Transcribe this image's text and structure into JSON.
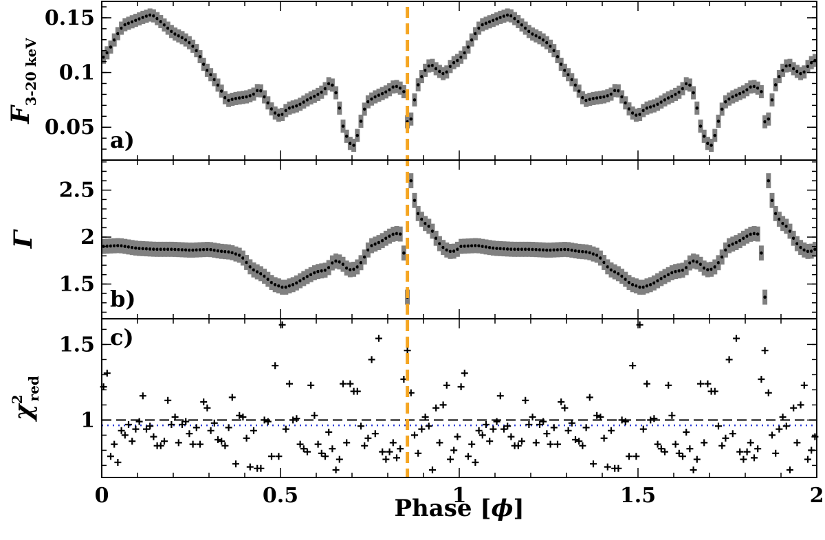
{
  "chart_data": {
    "type": "scatter",
    "x_axis": {
      "title_text": "Phase [",
      "title_symbol": "ϕ",
      "title_close": "]",
      "range": [
        0,
        2
      ],
      "ticks": [
        0,
        0.5,
        1,
        1.5,
        2
      ],
      "tick_labels": [
        "0",
        "0.5",
        "1",
        "1.5",
        "2"
      ]
    },
    "marker_line": {
      "x": 0.855,
      "color": "#f5a623",
      "style": "dashed"
    },
    "colors": {
      "points": "#000000",
      "errorbars": "#808080",
      "unity_line": "#000000",
      "mean_line": "#2a3bd6"
    },
    "panels": [
      {
        "id": "flux",
        "tag": "a)",
        "ylabel_main": "F",
        "ylabel_sub": "3-20 keV",
        "ylim": [
          0.02,
          0.165
        ],
        "yticks": [
          0.05,
          0.1,
          0.15
        ],
        "ytick_labels": [
          "0.05",
          "0.1",
          "0.15"
        ],
        "errorbar_half": 0.006,
        "profile": [
          [
            0.0,
            0.112
          ],
          [
            0.02,
            0.12
          ],
          [
            0.04,
            0.133
          ],
          [
            0.06,
            0.143
          ],
          [
            0.09,
            0.147
          ],
          [
            0.12,
            0.151
          ],
          [
            0.14,
            0.153
          ],
          [
            0.16,
            0.148
          ],
          [
            0.18,
            0.142
          ],
          [
            0.2,
            0.136
          ],
          [
            0.23,
            0.131
          ],
          [
            0.25,
            0.126
          ],
          [
            0.27,
            0.118
          ],
          [
            0.29,
            0.104
          ],
          [
            0.31,
            0.096
          ],
          [
            0.33,
            0.086
          ],
          [
            0.35,
            0.074
          ],
          [
            0.37,
            0.076
          ],
          [
            0.39,
            0.077
          ],
          [
            0.41,
            0.078
          ],
          [
            0.43,
            0.081
          ],
          [
            0.44,
            0.086
          ],
          [
            0.46,
            0.075
          ],
          [
            0.48,
            0.064
          ],
          [
            0.5,
            0.06
          ],
          [
            0.52,
            0.067
          ],
          [
            0.55,
            0.07
          ],
          [
            0.58,
            0.076
          ],
          [
            0.6,
            0.079
          ],
          [
            0.62,
            0.083
          ],
          [
            0.64,
            0.092
          ],
          [
            0.66,
            0.078
          ],
          [
            0.67,
            0.057
          ],
          [
            0.68,
            0.045
          ],
          [
            0.7,
            0.032
          ],
          [
            0.71,
            0.035
          ],
          [
            0.72,
            0.05
          ],
          [
            0.74,
            0.072
          ],
          [
            0.76,
            0.077
          ],
          [
            0.78,
            0.08
          ],
          [
            0.8,
            0.083
          ],
          [
            0.82,
            0.088
          ],
          [
            0.84,
            0.085
          ],
          [
            0.85,
            0.08
          ],
          [
            0.855,
            0.055
          ],
          [
            0.86,
            0.05
          ],
          [
            0.87,
            0.065
          ],
          [
            0.88,
            0.085
          ],
          [
            0.9,
            0.1
          ],
          [
            0.92,
            0.108
          ],
          [
            0.94,
            0.102
          ],
          [
            0.96,
            0.098
          ],
          [
            0.98,
            0.108
          ],
          [
            1.0,
            0.112
          ]
        ]
      },
      {
        "id": "gamma",
        "tag": "b)",
        "ylabel_main": "Γ",
        "ylabel_sub": "",
        "ylim": [
          1.13,
          2.82
        ],
        "yticks": [
          1.5,
          2,
          2.5
        ],
        "ytick_labels": [
          "1.5",
          "2",
          "2.5"
        ],
        "errorbar_half": 0.08,
        "profile": [
          [
            0.0,
            1.9
          ],
          [
            0.05,
            1.91
          ],
          [
            0.1,
            1.88
          ],
          [
            0.15,
            1.87
          ],
          [
            0.2,
            1.87
          ],
          [
            0.25,
            1.86
          ],
          [
            0.3,
            1.87
          ],
          [
            0.33,
            1.85
          ],
          [
            0.36,
            1.84
          ],
          [
            0.39,
            1.8
          ],
          [
            0.42,
            1.66
          ],
          [
            0.45,
            1.6
          ],
          [
            0.48,
            1.5
          ],
          [
            0.51,
            1.46
          ],
          [
            0.54,
            1.5
          ],
          [
            0.57,
            1.57
          ],
          [
            0.6,
            1.63
          ],
          [
            0.63,
            1.65
          ],
          [
            0.65,
            1.75
          ],
          [
            0.67,
            1.73
          ],
          [
            0.69,
            1.65
          ],
          [
            0.71,
            1.66
          ],
          [
            0.73,
            1.75
          ],
          [
            0.75,
            1.9
          ],
          [
            0.78,
            1.95
          ],
          [
            0.8,
            2.0
          ],
          [
            0.82,
            2.04
          ],
          [
            0.84,
            2.03
          ],
          [
            0.85,
            1.63
          ],
          [
            0.855,
            1.36
          ],
          [
            0.86,
            2.7
          ],
          [
            0.87,
            2.5
          ],
          [
            0.88,
            2.28
          ],
          [
            0.9,
            2.16
          ],
          [
            0.92,
            2.1
          ],
          [
            0.94,
            1.95
          ],
          [
            0.96,
            1.87
          ],
          [
            0.98,
            1.84
          ],
          [
            1.0,
            1.88
          ]
        ]
      },
      {
        "id": "chi",
        "tag": "c)",
        "ylabel_main": "χ",
        "ylabel_sup": "2",
        "ylabel_sub": "red",
        "ylim": [
          0.62,
          1.67
        ],
        "yticks": [
          1,
          1.5
        ],
        "ytick_labels": [
          "1",
          "1.5"
        ],
        "unity_value": 1.0,
        "mean_value": 0.965,
        "points": [
          [
            0.005,
            1.22
          ],
          [
            0.015,
            1.31
          ],
          [
            0.025,
            0.76
          ],
          [
            0.035,
            0.84
          ],
          [
            0.045,
            0.72
          ],
          [
            0.055,
            0.93
          ],
          [
            0.065,
            0.9
          ],
          [
            0.075,
            0.97
          ],
          [
            0.085,
            0.86
          ],
          [
            0.095,
            0.94
          ],
          [
            0.105,
            0.99
          ],
          [
            0.115,
            1.16
          ],
          [
            0.125,
            0.94
          ],
          [
            0.135,
            0.96
          ],
          [
            0.145,
            0.89
          ],
          [
            0.155,
            0.83
          ],
          [
            0.165,
            0.83
          ],
          [
            0.175,
            0.86
          ],
          [
            0.185,
            1.13
          ],
          [
            0.195,
            0.97
          ],
          [
            0.205,
            1.02
          ],
          [
            0.215,
            0.85
          ],
          [
            0.225,
            0.97
          ],
          [
            0.235,
            0.99
          ],
          [
            0.245,
            0.91
          ],
          [
            0.255,
            0.84
          ],
          [
            0.265,
            0.95
          ],
          [
            0.275,
            0.84
          ],
          [
            0.285,
            1.12
          ],
          [
            0.295,
            1.08
          ],
          [
            0.305,
            0.93
          ],
          [
            0.315,
            0.98
          ],
          [
            0.325,
            0.87
          ],
          [
            0.335,
            0.86
          ],
          [
            0.345,
            0.83
          ],
          [
            0.355,
            0.95
          ],
          [
            0.365,
            1.15
          ],
          [
            0.375,
            0.71
          ],
          [
            0.385,
            1.03
          ],
          [
            0.395,
            1.02
          ],
          [
            0.405,
            0.88
          ],
          [
            0.415,
            0.69
          ],
          [
            0.425,
            0.93
          ],
          [
            0.435,
            0.68
          ],
          [
            0.445,
            0.68
          ],
          [
            0.455,
            1.0
          ],
          [
            0.465,
            0.99
          ],
          [
            0.475,
            0.76
          ],
          [
            0.485,
            1.36
          ],
          [
            0.495,
            0.76
          ],
          [
            0.505,
            1.63
          ],
          [
            0.515,
            0.94
          ],
          [
            0.525,
            1.24
          ],
          [
            0.535,
            1.0
          ],
          [
            0.545,
            1.01
          ],
          [
            0.555,
            0.84
          ],
          [
            0.565,
            0.81
          ],
          [
            0.575,
            0.79
          ],
          [
            0.585,
            1.23
          ],
          [
            0.595,
            1.03
          ],
          [
            0.605,
            0.84
          ],
          [
            0.615,
            0.78
          ],
          [
            0.625,
            0.76
          ],
          [
            0.635,
            0.92
          ],
          [
            0.645,
            0.81
          ],
          [
            0.655,
            0.67
          ],
          [
            0.665,
            0.74
          ],
          [
            0.675,
            1.24
          ],
          [
            0.685,
            0.85
          ],
          [
            0.695,
            1.24
          ],
          [
            0.705,
            1.19
          ],
          [
            0.715,
            1.19
          ],
          [
            0.725,
            0.96
          ],
          [
            0.735,
            0.83
          ],
          [
            0.745,
            0.88
          ],
          [
            0.755,
            1.4
          ],
          [
            0.765,
            0.91
          ],
          [
            0.775,
            1.54
          ],
          [
            0.785,
            0.79
          ],
          [
            0.795,
            0.74
          ],
          [
            0.805,
            0.79
          ],
          [
            0.815,
            0.85
          ],
          [
            0.825,
            0.75
          ],
          [
            0.835,
            0.81
          ],
          [
            0.845,
            1.27
          ],
          [
            0.855,
            1.46
          ],
          [
            0.865,
            1.18
          ],
          [
            0.875,
            0.9
          ],
          [
            0.885,
            0.78
          ],
          [
            0.895,
            0.94
          ],
          [
            0.905,
            1.02
          ],
          [
            0.915,
            0.96
          ],
          [
            0.925,
            0.67
          ],
          [
            0.935,
            1.08
          ],
          [
            0.945,
            0.85
          ],
          [
            0.955,
            1.1
          ],
          [
            0.965,
            1.23
          ],
          [
            0.975,
            0.74
          ],
          [
            0.985,
            0.8
          ],
          [
            0.995,
            0.89
          ]
        ]
      }
    ]
  }
}
